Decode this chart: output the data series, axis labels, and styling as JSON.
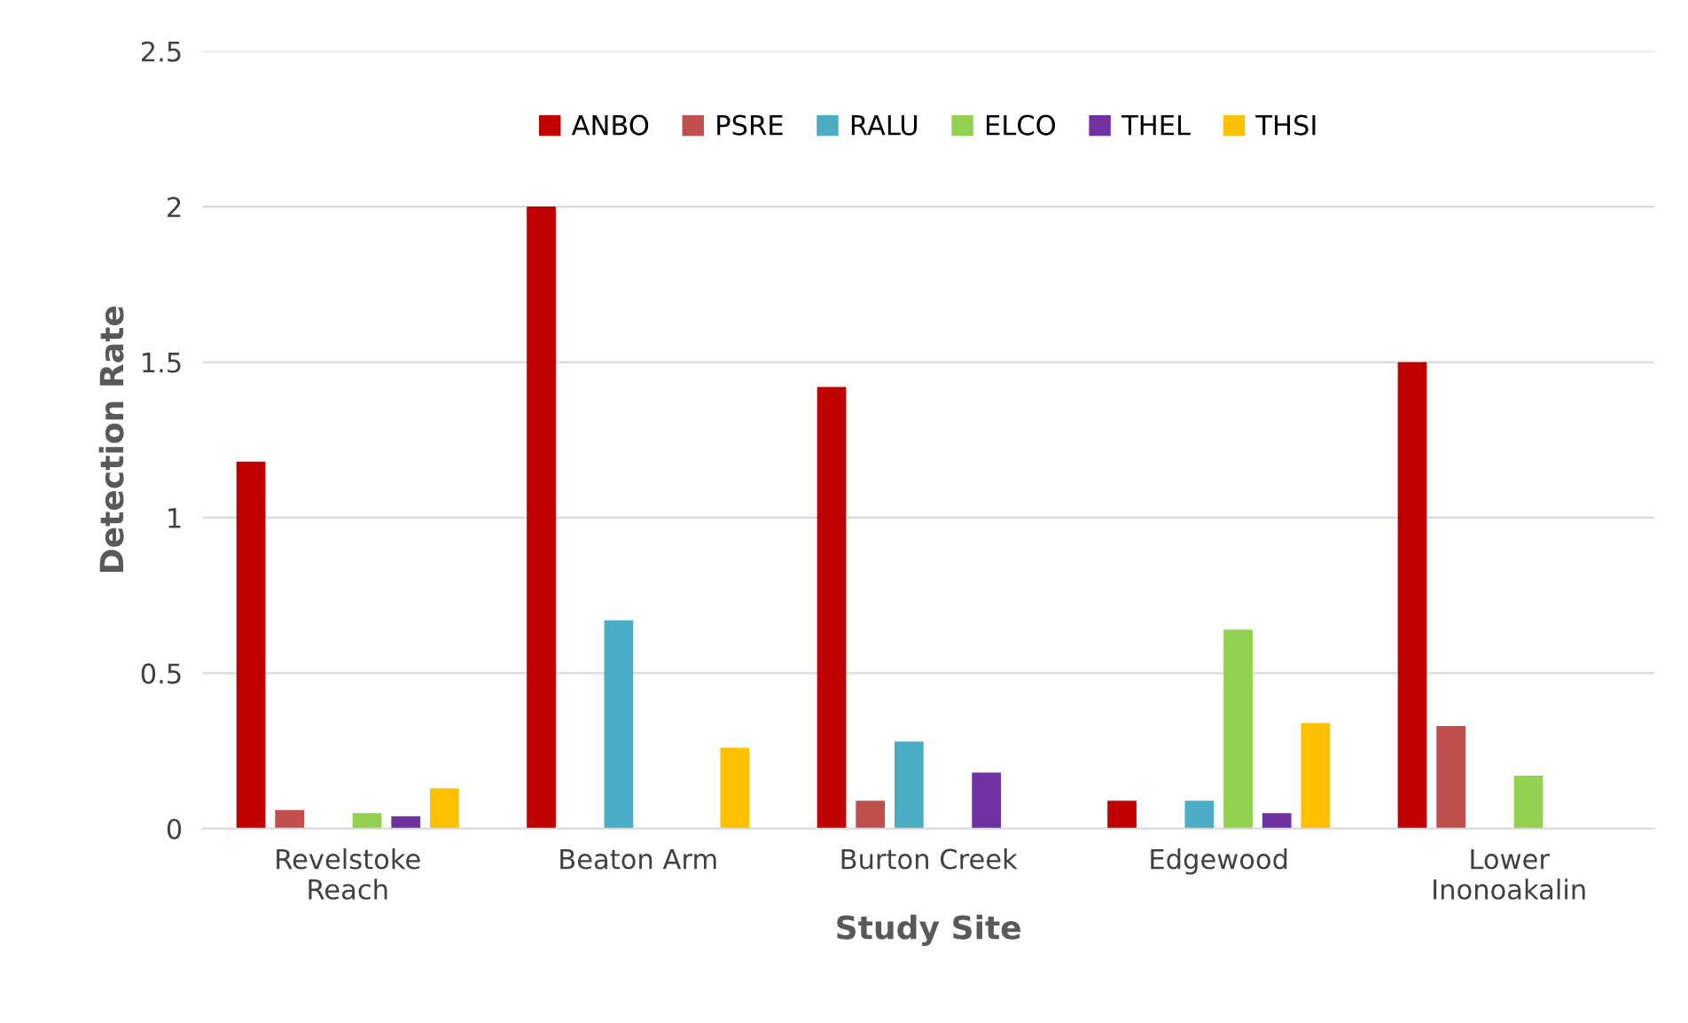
{
  "chart_data": {
    "type": "bar",
    "xlabel": "Study Site",
    "ylabel": "Detection Rate",
    "categories": [
      "Revelstoke\nReach",
      "Beaton Arm",
      "Burton Creek",
      "Edgewood",
      "Lower\nInonoakalin"
    ],
    "series": [
      {
        "name": "ANBO",
        "color": "#c00000",
        "values": [
          1.18,
          2.0,
          1.42,
          0.09,
          1.5
        ]
      },
      {
        "name": "PSRE",
        "color": "#c0504d",
        "values": [
          0.06,
          null,
          0.09,
          null,
          0.33
        ]
      },
      {
        "name": "RALU",
        "color": "#4bacc6",
        "values": [
          null,
          0.67,
          0.28,
          0.09,
          null
        ]
      },
      {
        "name": "ELCO",
        "color": "#92d050",
        "values": [
          0.05,
          null,
          null,
          0.64,
          0.17
        ]
      },
      {
        "name": "THEL",
        "color": "#7030a0",
        "values": [
          0.04,
          null,
          0.18,
          0.05,
          null
        ]
      },
      {
        "name": "THSI",
        "color": "#ffc000",
        "values": [
          0.13,
          0.26,
          null,
          0.34,
          null
        ]
      }
    ],
    "ylim": [
      0,
      2.5
    ],
    "yticks": [
      0,
      0.5,
      1,
      1.5,
      2,
      2.5
    ],
    "grid": "y",
    "legend": "top"
  }
}
